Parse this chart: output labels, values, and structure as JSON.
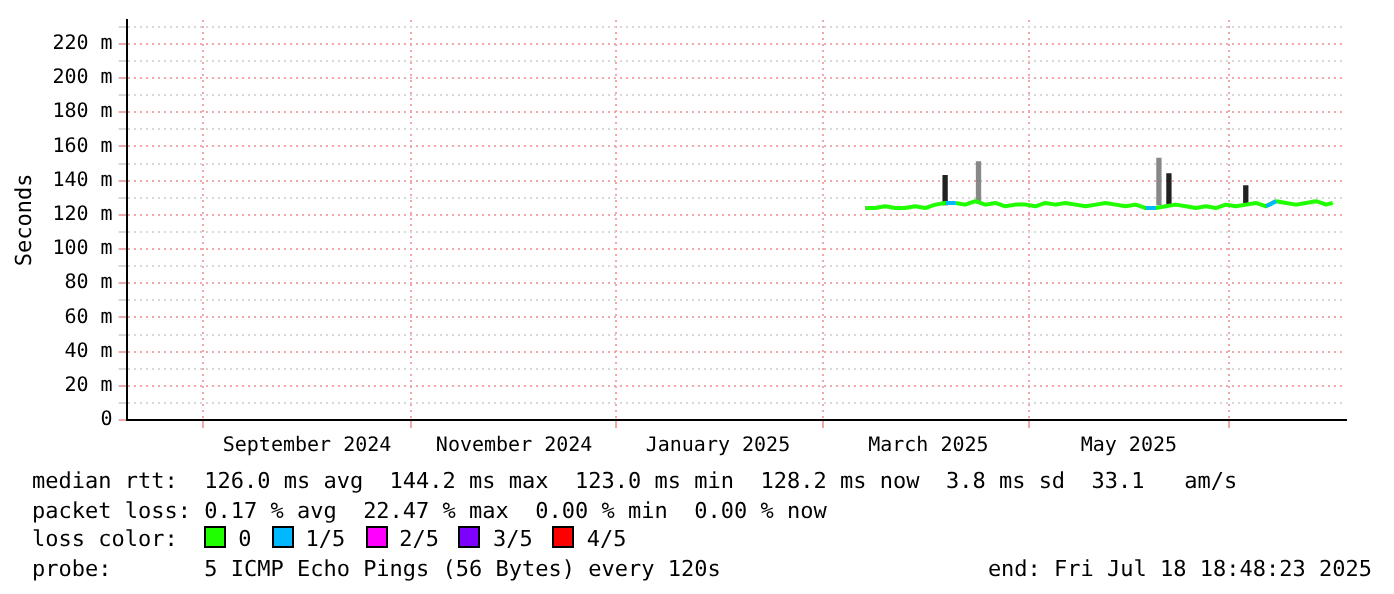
{
  "chart_data": {
    "type": "line",
    "ylabel": "Seconds",
    "legend_title": "loss color:",
    "legend": "bottom",
    "grid": true,
    "marker": "none",
    "xlim": [
      "2024-07-18",
      "2025-07-18"
    ],
    "xticks": [
      {
        "value": "2024-09-10",
        "label": "September 2024"
      },
      {
        "value": "2024-11-11",
        "label": "November 2024"
      },
      {
        "value": "2025-01-11",
        "label": "January 2025"
      },
      {
        "value": "2025-03-15",
        "label": "March 2025"
      },
      {
        "value": "2025-05-14",
        "label": "May 2025"
      }
    ],
    "ylim": [
      0,
      234
    ],
    "yticks": [
      {
        "value": 0,
        "label": "0"
      },
      {
        "value": 10,
        "label": null
      },
      {
        "value": 20,
        "label": "20 m"
      },
      {
        "value": 30,
        "label": null
      },
      {
        "value": 40,
        "label": "40 m"
      },
      {
        "value": 50,
        "label": null
      },
      {
        "value": 60,
        "label": "60 m"
      },
      {
        "value": 70,
        "label": null
      },
      {
        "value": 80,
        "label": "80 m"
      },
      {
        "value": 90,
        "label": null
      },
      {
        "value": 100,
        "label": "100 m"
      },
      {
        "value": 110,
        "label": null
      },
      {
        "value": 120,
        "label": "120 m"
      },
      {
        "value": 130,
        "label": null
      },
      {
        "value": 140,
        "label": "140 m"
      },
      {
        "value": 150,
        "label": null
      },
      {
        "value": 160,
        "label": "160 m"
      },
      {
        "value": 170,
        "label": null
      },
      {
        "value": 180,
        "label": "180 m"
      },
      {
        "value": 190,
        "label": null
      },
      {
        "value": 200,
        "label": "200 m"
      },
      {
        "value": 210,
        "label": null
      },
      {
        "value": 220,
        "label": "220 m"
      },
      {
        "value": 230,
        "label": null
      }
    ],
    "x": [
      "2025-02-24",
      "2025-02-27",
      "2025-03-02",
      "2025-03-05",
      "2025-03-08",
      "2025-03-11",
      "2025-03-14",
      "2025-03-17",
      "2025-03-20",
      "2025-03-23",
      "2025-03-26",
      "2025-03-29",
      "2025-04-01",
      "2025-04-04",
      "2025-04-07",
      "2025-04-10",
      "2025-04-13",
      "2025-04-16",
      "2025-04-19",
      "2025-04-22",
      "2025-04-25",
      "2025-04-28",
      "2025-05-01",
      "2025-05-04",
      "2025-05-07",
      "2025-05-10",
      "2025-05-13",
      "2025-05-16",
      "2025-05-19",
      "2025-05-22",
      "2025-05-25",
      "2025-05-28",
      "2025-05-31",
      "2025-06-03",
      "2025-06-06",
      "2025-06-09",
      "2025-06-12",
      "2025-06-15",
      "2025-06-18",
      "2025-06-21",
      "2025-06-24",
      "2025-06-27",
      "2025-06-30",
      "2025-07-03",
      "2025-07-06",
      "2025-07-09",
      "2025-07-12",
      "2025-07-14"
    ],
    "series": [
      {
        "type": "bar",
        "x": [
          "2025-03-20",
          "2025-03-30",
          "2025-05-23",
          "2025-05-26",
          "2025-06-18"
        ],
        "base": [
          126,
          127,
          126,
          126,
          127
        ],
        "values": [
          17,
          24,
          27,
          18,
          10
        ],
        "colors": [
          "#222222",
          "#888888",
          "#888888",
          "#222222",
          "#222222"
        ]
      },
      {
        "name": "0",
        "color": "#20ff00",
        "values": [
          124,
          124,
          125,
          124,
          124,
          125,
          124,
          126,
          127,
          127,
          126,
          128,
          126,
          127,
          125,
          126,
          126,
          125,
          127,
          126,
          127,
          126,
          125,
          126,
          127,
          126,
          125,
          126,
          124,
          124,
          125,
          126,
          125,
          124,
          125,
          124,
          126,
          125,
          126,
          127,
          125,
          128,
          127,
          126,
          127,
          128,
          126,
          127
        ]
      },
      {
        "name": "1/5",
        "color": "#00b8ff",
        "values": [
          null,
          null,
          null,
          null,
          null,
          null,
          null,
          null,
          127,
          127,
          null,
          null,
          null,
          null,
          null,
          null,
          null,
          null,
          null,
          null,
          null,
          null,
          null,
          null,
          null,
          null,
          null,
          null,
          124,
          124,
          null,
          null,
          null,
          null,
          null,
          null,
          null,
          null,
          null,
          null,
          125,
          128,
          null,
          null,
          null,
          null,
          null,
          null
        ]
      },
      {
        "name": "2/5",
        "color": "#ff00ff",
        "values": [
          null,
          null,
          null,
          null,
          null,
          null,
          null,
          null,
          null,
          null,
          null,
          null,
          null,
          null,
          null,
          null,
          null,
          null,
          null,
          null,
          null,
          null,
          null,
          null,
          null,
          null,
          null,
          null,
          null,
          null,
          null,
          null,
          null,
          null,
          null,
          null,
          null,
          null,
          null,
          null,
          null,
          null,
          null,
          null,
          null,
          null,
          null,
          null
        ]
      },
      {
        "name": "3/5",
        "color": "#7e00ff",
        "values": [
          null,
          null,
          null,
          null,
          null,
          null,
          null,
          null,
          null,
          null,
          null,
          null,
          null,
          null,
          null,
          null,
          null,
          null,
          null,
          null,
          null,
          null,
          null,
          null,
          null,
          null,
          null,
          null,
          null,
          null,
          null,
          null,
          null,
          null,
          null,
          null,
          null,
          null,
          null,
          null,
          null,
          null,
          null,
          null,
          null,
          null,
          null,
          null
        ]
      },
      {
        "name": "4/5",
        "color": "#ff0000",
        "values": [
          null,
          null,
          null,
          null,
          null,
          null,
          null,
          null,
          null,
          null,
          null,
          null,
          null,
          null,
          null,
          null,
          null,
          null,
          null,
          null,
          null,
          null,
          null,
          null,
          null,
          null,
          null,
          null,
          null,
          null,
          null,
          null,
          null,
          null,
          null,
          null,
          null,
          null,
          null,
          null,
          null,
          null,
          null,
          null,
          null,
          null,
          null,
          null
        ]
      }
    ],
    "annotations": [
      "median rtt:  126.0 ms avg  144.2 ms max  123.0 ms min  128.2 ms now  3.8 ms sd  33.1   am/s",
      "packet loss: 0.17 % avg  22.47 % max  0.00 % min  0.00 % now",
      "probe:       5 ICMP Echo Pings (56 Bytes) every 120s",
      "end: Fri Jul 18 18:48:23 2025"
    ]
  }
}
